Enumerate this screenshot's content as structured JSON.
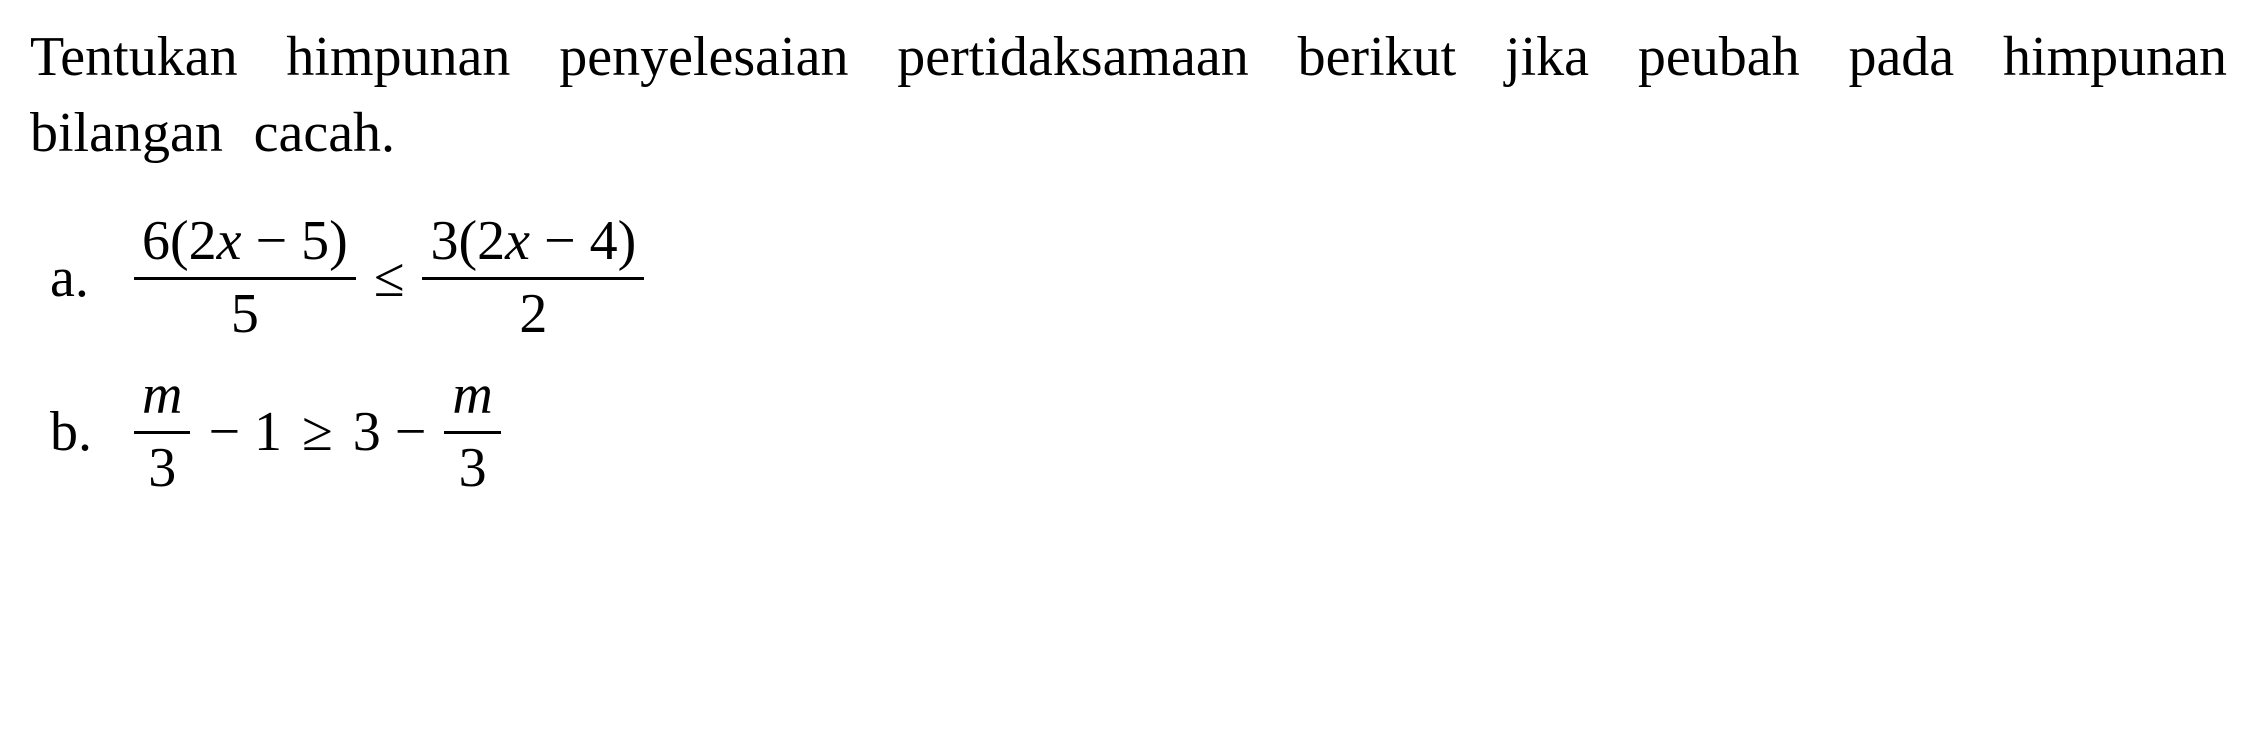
{
  "problem": {
    "text": "Tentukan himpunan penyelesaian pertidaksamaan berikut jika peubah pada himpunan bilangan cacah.",
    "font_size": 56,
    "color": "#000000",
    "background": "#ffffff"
  },
  "items": {
    "a": {
      "label": "a.",
      "left_frac": {
        "num": "6(2x − 5)",
        "den": "5"
      },
      "operator": "≤",
      "right_frac": {
        "num": "3(2x − 4)",
        "den": "2"
      }
    },
    "b": {
      "label": "b.",
      "frac1": {
        "num": "m",
        "den": "3"
      },
      "mid1": "− 1",
      "operator": "≥",
      "mid2": "3 −",
      "frac2": {
        "num": "m",
        "den": "3"
      }
    }
  }
}
